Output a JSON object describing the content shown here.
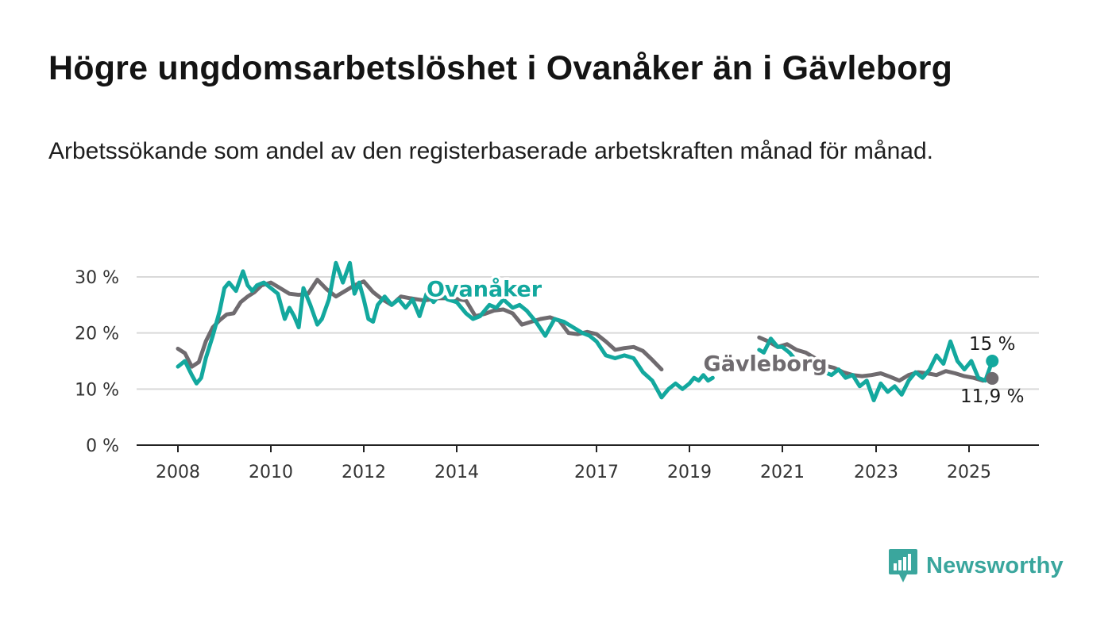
{
  "title": "Högre ungdomsarbetslöshet i Ovanåker än i Gävleborg",
  "subtitle": "Arbetssökande som andel av den registerbaserade arbetskraften månad för månad.",
  "logo": {
    "text": "Newsworthy",
    "icon": "newsworthy-chart-icon",
    "color": "#3aa69d"
  },
  "chart_data": {
    "type": "line",
    "title": "Högre ungdomsarbetslöshet i Ovanåker än i Gävleborg",
    "subtitle": "Arbetssökande som andel av den registerbaserade arbetskraften månad för månad.",
    "xlabel": "",
    "ylabel": "",
    "x_ticks": [
      "2008",
      "2010",
      "2012",
      "2014",
      "2017",
      "2019",
      "2021",
      "2023",
      "2025"
    ],
    "x_tick_values": [
      2008,
      2010,
      2012,
      2014,
      2017,
      2019,
      2021,
      2023,
      2025
    ],
    "xlim": [
      2008,
      2025.6
    ],
    "y_ticks": [
      "0 %",
      "10 %",
      "20 %",
      "30 %"
    ],
    "y_tick_values": [
      0,
      10,
      20,
      30
    ],
    "ylim": [
      0,
      30
    ],
    "grid": true,
    "end_labels": {
      "Ovanåker": "15 %",
      "Gävleborg": "11,9 %"
    },
    "series": [
      {
        "name": "Gävleborg",
        "color": "#6f6b6f",
        "x": [
          2008.0,
          2008.15,
          2008.3,
          2008.45,
          2008.6,
          2008.75,
          2008.9,
          2009.05,
          2009.2,
          2009.35,
          2009.5,
          2009.65,
          2009.8,
          2010.0,
          2010.2,
          2010.4,
          2010.6,
          2010.8,
          2011.0,
          2011.2,
          2011.4,
          2011.6,
          2011.8,
          2012.0,
          2012.2,
          2012.4,
          2012.6,
          2012.8,
          2013.0,
          2013.3,
          2013.6,
          2013.9,
          2014.2,
          2014.4,
          2014.6,
          2014.8,
          2015.0,
          2015.2,
          2015.4,
          2015.6,
          2015.8,
          2016.0,
          2016.2,
          2016.4,
          2016.6,
          2016.8,
          2017.0,
          2017.2,
          2017.4,
          2017.6,
          2017.8,
          2018.0,
          2018.2,
          2018.4
        ],
        "y": [
          17.2,
          16.4,
          14.0,
          14.8,
          18.5,
          21.0,
          22.3,
          23.3,
          23.5,
          25.5,
          26.5,
          27.3,
          28.5,
          29.0,
          28.0,
          27.0,
          26.8,
          27.0,
          29.5,
          27.8,
          26.5,
          27.5,
          28.5,
          29.2,
          27.3,
          26.0,
          25.0,
          26.5,
          26.2,
          25.8,
          26.2,
          26.2,
          25.8,
          23.0,
          23.4,
          24.0,
          24.2,
          23.5,
          21.5,
          22.0,
          22.5,
          22.8,
          22.2,
          20.0,
          19.8,
          20.2,
          19.8,
          18.5,
          17.0,
          17.3,
          17.5,
          16.8,
          15.2,
          13.5
        ]
      },
      {
        "name": "Gävleborg (forts.)",
        "color": "#6f6b6f",
        "x": [
          2020.5,
          2020.7,
          2020.9,
          2021.1,
          2021.3,
          2021.5,
          2021.7,
          2021.9,
          2022.1,
          2022.3,
          2022.5,
          2022.7,
          2022.9,
          2023.1,
          2023.3,
          2023.5,
          2023.7,
          2023.9,
          2024.1,
          2024.3,
          2024.5,
          2024.7,
          2024.9,
          2025.1,
          2025.3,
          2025.5
        ],
        "y": [
          19.2,
          18.5,
          17.5,
          18.0,
          17.0,
          16.5,
          15.5,
          14.2,
          13.8,
          13.0,
          12.5,
          12.3,
          12.5,
          12.8,
          12.2,
          11.5,
          12.5,
          13.0,
          12.8,
          12.5,
          13.2,
          12.8,
          12.3,
          12.0,
          11.5,
          11.9
        ]
      },
      {
        "name": "Ovanåker",
        "color": "#13a89e",
        "x": [
          2008.0,
          2008.15,
          2008.3,
          2008.4,
          2008.5,
          2008.6,
          2008.75,
          2008.9,
          2009.0,
          2009.1,
          2009.25,
          2009.4,
          2009.5,
          2009.6,
          2009.7,
          2009.85,
          2010.0,
          2010.15,
          2010.3,
          2010.4,
          2010.5,
          2010.6,
          2010.7,
          2010.85,
          2011.0,
          2011.1,
          2011.25,
          2011.4,
          2011.55,
          2011.7,
          2011.8,
          2011.9,
          2012.0,
          2012.1,
          2012.2,
          2012.3,
          2012.45,
          2012.6,
          2012.75,
          2012.9,
          2013.05,
          2013.2,
          2013.35,
          2013.5,
          2013.65,
          2013.8,
          2014.0,
          2014.2,
          2014.35,
          2014.5,
          2014.7,
          2014.85,
          2015.0,
          2015.2,
          2015.35,
          2015.5,
          2015.7,
          2015.9,
          2016.1,
          2016.3,
          2016.5,
          2016.7,
          2016.85,
          2017.0,
          2017.2,
          2017.4,
          2017.6,
          2017.8,
          2018.0,
          2018.2,
          2018.4,
          2018.55,
          2018.7,
          2018.85,
          2019.0,
          2019.1,
          2019.2,
          2019.3,
          2019.4,
          2019.5
        ],
        "y": [
          14.0,
          15.0,
          12.5,
          11.0,
          12.0,
          15.5,
          19.5,
          24.0,
          28.0,
          29.0,
          27.5,
          31.0,
          28.5,
          27.5,
          28.5,
          29.0,
          28.0,
          27.0,
          22.5,
          24.5,
          23.0,
          21.0,
          28.0,
          25.0,
          21.5,
          22.5,
          26.0,
          32.5,
          29.0,
          32.5,
          27.0,
          29.0,
          26.0,
          22.5,
          22.0,
          25.0,
          26.5,
          25.0,
          26.0,
          24.5,
          26.0,
          23.0,
          27.0,
          25.5,
          27.0,
          26.0,
          25.5,
          23.5,
          22.5,
          23.0,
          25.0,
          24.5,
          26.0,
          24.5,
          25.0,
          24.0,
          22.0,
          19.5,
          22.5,
          22.0,
          21.0,
          20.0,
          19.5,
          18.5,
          16.0,
          15.5,
          16.0,
          15.5,
          13.0,
          11.5,
          8.5,
          10.0,
          11.0,
          10.0,
          11.0,
          12.0,
          11.5,
          12.5,
          11.5,
          12.0
        ]
      },
      {
        "name": "Ovanåker (forts.)",
        "color": "#13a89e",
        "x": [
          2020.5,
          2020.6,
          2020.75,
          2020.9,
          2021.0,
          2021.15,
          2021.3,
          2021.45,
          2021.6,
          2021.75,
          2021.9,
          2022.05,
          2022.2,
          2022.35,
          2022.5,
          2022.65,
          2022.8,
          2022.95,
          2023.1,
          2023.25,
          2023.4,
          2023.55,
          2023.7,
          2023.85,
          2024.0,
          2024.15,
          2024.3,
          2024.45,
          2024.6,
          2024.75,
          2024.9,
          2025.05,
          2025.2,
          2025.35,
          2025.5
        ],
        "y": [
          17.0,
          16.5,
          19.0,
          17.5,
          17.5,
          16.5,
          15.0,
          14.0,
          15.5,
          14.5,
          13.0,
          12.5,
          13.5,
          12.0,
          12.5,
          10.5,
          11.5,
          8.0,
          11.0,
          9.5,
          10.5,
          9.0,
          11.5,
          13.0,
          12.0,
          13.5,
          16.0,
          14.5,
          18.5,
          15.0,
          13.5,
          15.0,
          12.0,
          11.5,
          15.0
        ]
      }
    ],
    "annotations": [
      {
        "text": "Ovanåker",
        "x": 2013.35,
        "y": 26.5
      },
      {
        "text": "Gävleborg",
        "x": 2019.3,
        "y": 13.2
      }
    ]
  }
}
